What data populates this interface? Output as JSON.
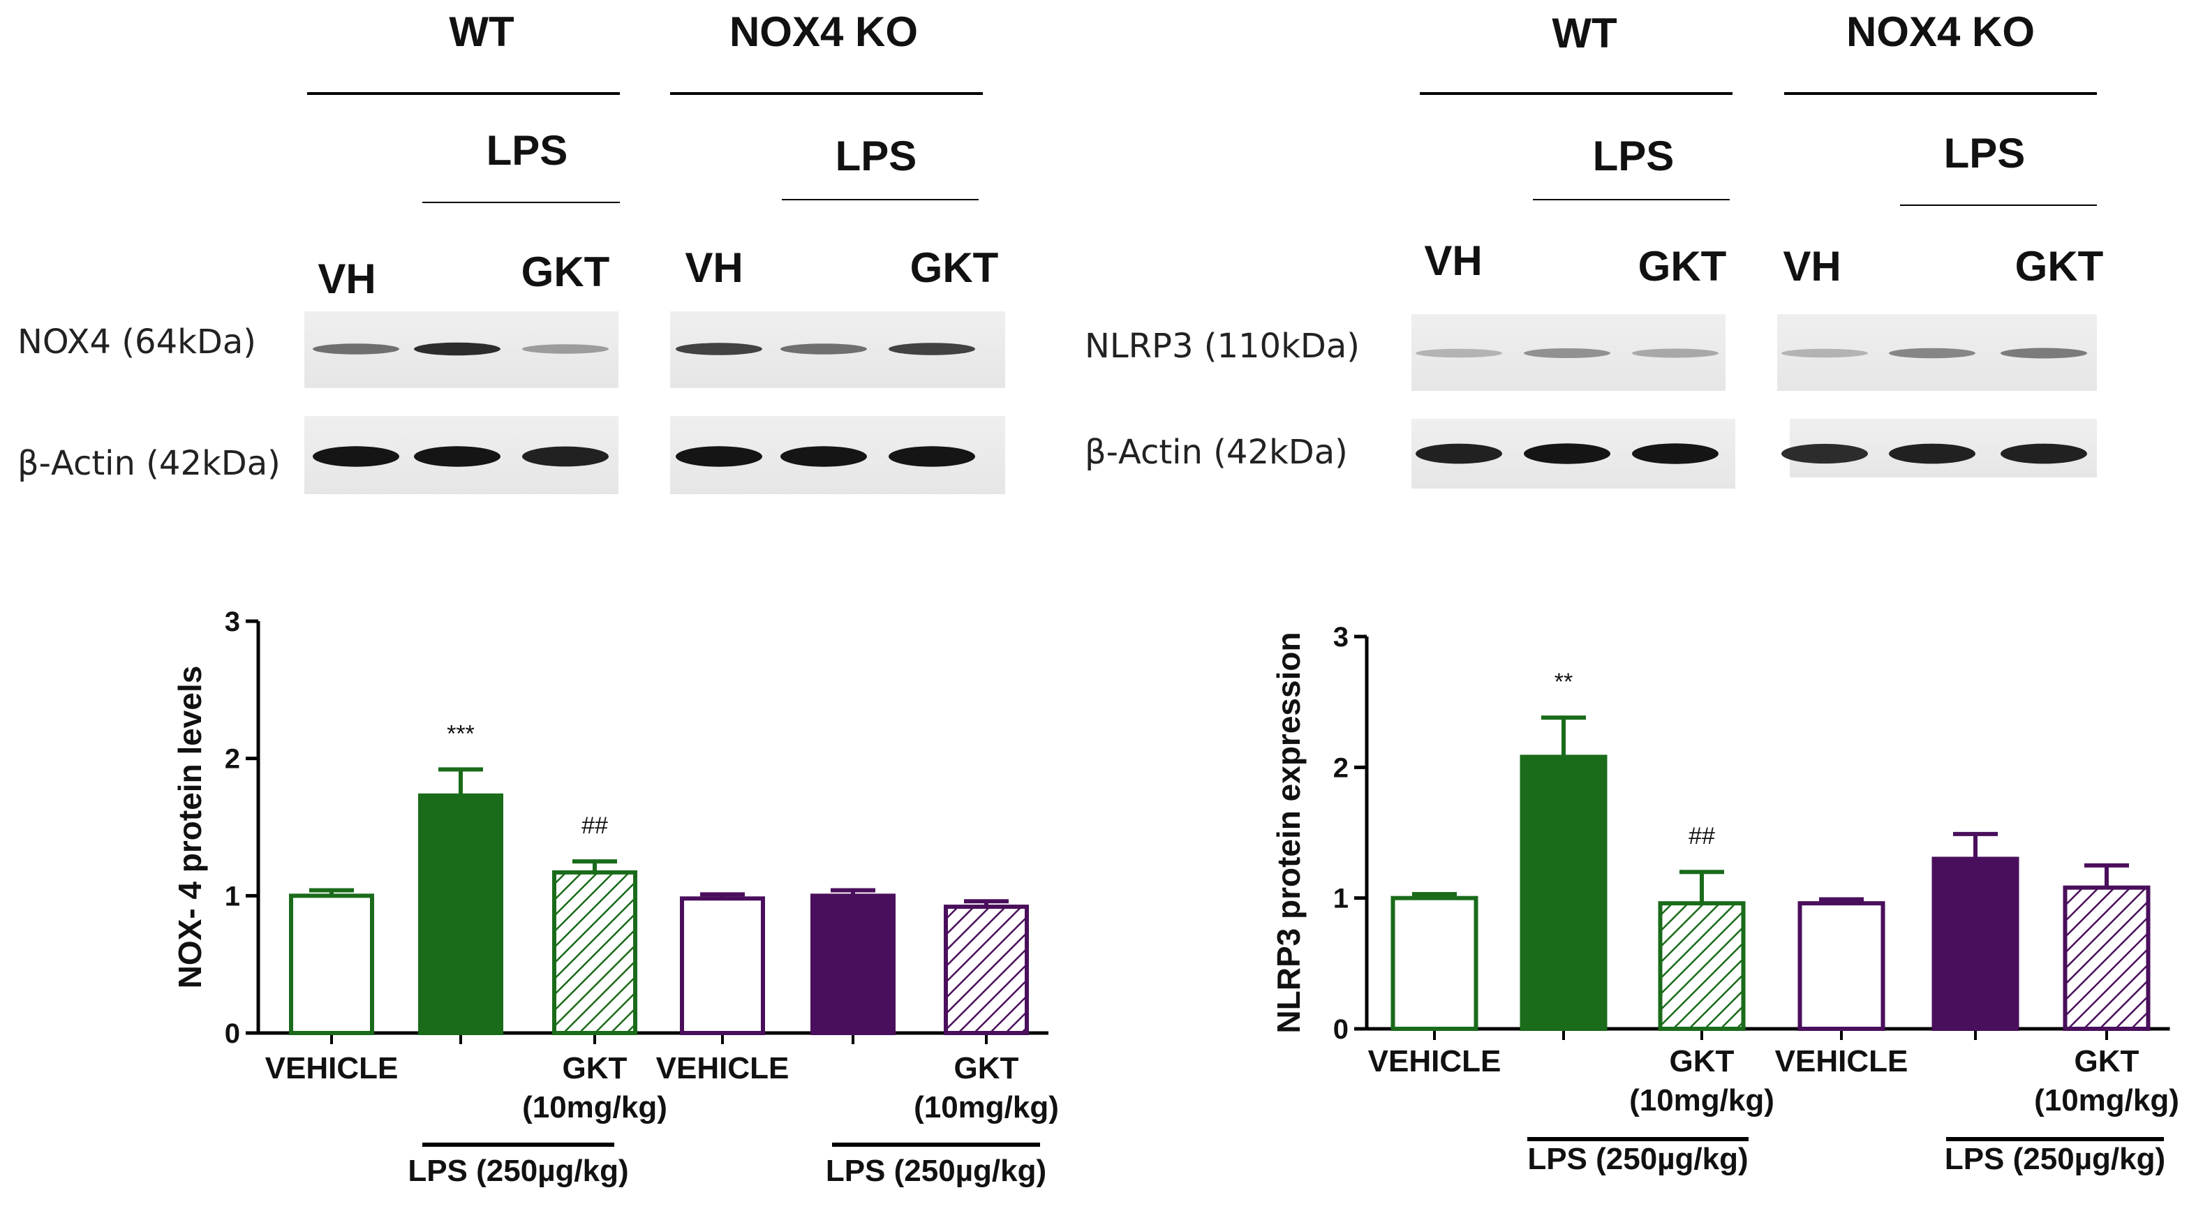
{
  "blots": [
    {
      "id": "nox4",
      "groups": [
        {
          "label": "WT",
          "lps_label": "LPS",
          "lanes": [
            "VH",
            "GKT"
          ]
        },
        {
          "label": "NOX4 KO",
          "lps_label": "LPS",
          "lanes": [
            "VH",
            "GKT"
          ]
        }
      ],
      "rows": [
        {
          "label": "NOX4 (64kDa)",
          "intensity": [
            0.55,
            0.85,
            0.35,
            0.75,
            0.55,
            0.75
          ]
        },
        {
          "label": "β-Actin (42kDa)",
          "intensity": [
            0.95,
            0.95,
            0.9,
            0.95,
            0.95,
            0.95
          ]
        }
      ]
    },
    {
      "id": "nlrp3",
      "groups": [
        {
          "label": "WT",
          "lps_label": "LPS",
          "lanes": [
            "VH",
            "GKT"
          ]
        },
        {
          "label": "NOX4 KO",
          "lps_label": "LPS",
          "lanes": [
            "VH",
            "GKT"
          ]
        }
      ],
      "rows": [
        {
          "label": "NLRP3 (110kDa)",
          "intensity": [
            0.25,
            0.4,
            0.3,
            0.25,
            0.45,
            0.5
          ]
        },
        {
          "label": "β-Actin (42kDa)",
          "intensity": [
            0.9,
            0.95,
            0.95,
            0.85,
            0.9,
            0.9
          ]
        }
      ]
    }
  ],
  "chart_data": [
    {
      "type": "bar",
      "ylabel": "NOX- 4 protein levels",
      "ylim": [
        0,
        3
      ],
      "yticks": [
        "0",
        "1",
        "2",
        "3"
      ],
      "categories": [
        "VEHICLE",
        "LPS",
        "GKT (10mg/kg)",
        "VEHICLE",
        "LPS",
        "GKT (10mg/kg)"
      ],
      "x_labels": [
        {
          "lines": [
            "VEHICLE"
          ]
        },
        {
          "lines": []
        },
        {
          "lines": [
            "GKT",
            "(10mg/kg)"
          ]
        },
        {
          "lines": [
            "VEHICLE"
          ]
        },
        {
          "lines": []
        },
        {
          "lines": [
            "GKT",
            "(10mg/kg)"
          ]
        }
      ],
      "values": [
        1.0,
        1.73,
        1.17,
        0.98,
        1.0,
        0.92
      ],
      "errors": [
        0.04,
        0.19,
        0.08,
        0.03,
        0.04,
        0.04
      ],
      "fill": [
        "open",
        "solid",
        "hatch",
        "open",
        "solid",
        "hatch"
      ],
      "colors": [
        "#1a6b1a",
        "#1a6b1a",
        "#1a6b1a",
        "#4a0f5c",
        "#4a0f5c",
        "#4a0f5c"
      ],
      "annotations": [
        "",
        "***",
        "##",
        "",
        "",
        ""
      ],
      "group_labels": [
        "LPS (250µg/kg)",
        "LPS (250µg/kg)"
      ]
    },
    {
      "type": "bar",
      "ylabel": "NLRP3 protein expression",
      "ylim": [
        0,
        3
      ],
      "yticks": [
        "0",
        "1",
        "2",
        "3"
      ],
      "categories": [
        "VEHICLE",
        "LPS",
        "GKT (10mg/kg)",
        "VEHICLE",
        "LPS",
        "GKT (10mg/kg)"
      ],
      "x_labels": [
        {
          "lines": [
            "VEHICLE"
          ]
        },
        {
          "lines": []
        },
        {
          "lines": [
            "GKT",
            "(10mg/kg)"
          ]
        },
        {
          "lines": [
            "VEHICLE"
          ]
        },
        {
          "lines": []
        },
        {
          "lines": [
            "GKT",
            "(10mg/kg)"
          ]
        }
      ],
      "values": [
        1.0,
        2.08,
        0.96,
        0.96,
        1.3,
        1.08
      ],
      "errors": [
        0.03,
        0.3,
        0.24,
        0.03,
        0.19,
        0.17
      ],
      "fill": [
        "open",
        "solid",
        "hatch",
        "open",
        "solid",
        "hatch"
      ],
      "colors": [
        "#1a6b1a",
        "#1a6b1a",
        "#1a6b1a",
        "#4a0f5c",
        "#4a0f5c",
        "#4a0f5c"
      ],
      "annotations": [
        "",
        "**",
        "##",
        "",
        "",
        ""
      ],
      "group_labels": [
        "LPS (250µg/kg)",
        "LPS (250µg/kg)"
      ]
    }
  ]
}
